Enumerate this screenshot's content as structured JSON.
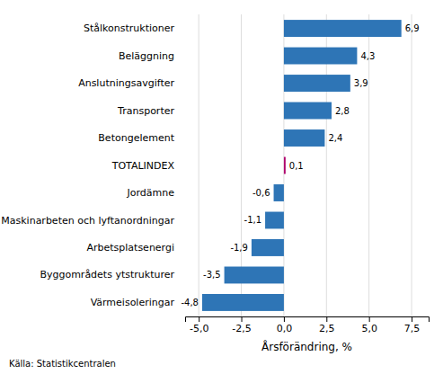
{
  "chart_data": {
    "type": "bar",
    "orientation": "horizontal",
    "categories": [
      "Värmeisoleringar",
      "Byggområdets ytstrukturer",
      "Arbetsplatsenergi",
      "Maskinarbeten och lyftanordningar",
      "Jordämne",
      "TOTALINDEX",
      "Betongelement",
      "Transporter",
      "Anslutningsavgifter",
      "Beläggning",
      "Stålkonstruktioner"
    ],
    "values": [
      -4.8,
      -3.5,
      -1.9,
      -1.1,
      -0.6,
      0.1,
      2.4,
      2.8,
      3.9,
      4.3,
      6.9
    ],
    "value_labels": [
      "-4,8",
      "-3,5",
      "-1,9",
      "-1,1",
      "-0,6",
      "0,1",
      "2,4",
      "2,8",
      "3,9",
      "4,3",
      "6,9"
    ],
    "data_labels": true,
    "colors": [
      "#2E75B6",
      "#2E75B6",
      "#2E75B6",
      "#2E75B6",
      "#2E75B6",
      "#B0006D",
      "#2E75B6",
      "#2E75B6",
      "#2E75B6",
      "#2E75B6",
      "#2E75B6"
    ],
    "xlabel": "Årsförändring, %",
    "xlim": [
      -5.8,
      8.5
    ],
    "xticks": [
      {
        "value": -5.0,
        "label": "-5,0"
      },
      {
        "value": -2.5,
        "label": "-2,5"
      },
      {
        "value": 0.0,
        "label": "0,0"
      },
      {
        "value": 2.5,
        "label": "2,5"
      },
      {
        "value": 5.0,
        "label": "5,0"
      },
      {
        "value": 7.5,
        "label": "7,5"
      }
    ],
    "grid": true,
    "annotations": [
      "Källa: Statistikcentralen"
    ]
  }
}
